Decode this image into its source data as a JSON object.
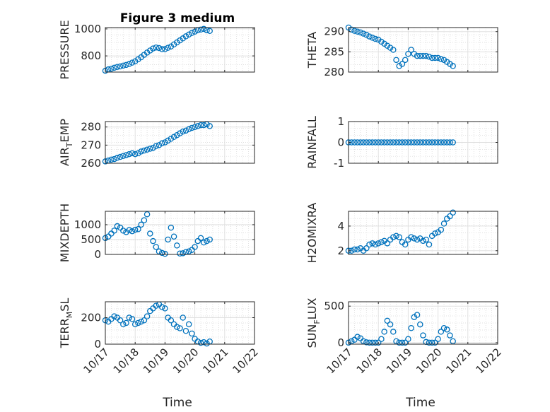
{
  "chart_data": {
    "type": "scatter",
    "title": "Figure 3 medium",
    "xlabel": "Time",
    "marker_color": "#0072BD",
    "x_tick_labels": [
      "10/17",
      "10/18",
      "10/19",
      "10/20",
      "10/21",
      "10/22"
    ],
    "xlim": [
      0,
      5
    ],
    "panels": [
      {
        "id": "pressure",
        "ylabel": "PRESSURE",
        "ylim": [
          680,
          1010
        ],
        "yticks": [
          800,
          1000
        ],
        "ytick_labels": [
          "800",
          "1000"
        ],
        "points": [
          [
            0,
            690
          ],
          [
            0.1,
            700
          ],
          [
            0.2,
            705
          ],
          [
            0.3,
            712
          ],
          [
            0.4,
            718
          ],
          [
            0.5,
            722
          ],
          [
            0.6,
            728
          ],
          [
            0.7,
            733
          ],
          [
            0.8,
            740
          ],
          [
            0.9,
            750
          ],
          [
            1.0,
            760
          ],
          [
            1.1,
            775
          ],
          [
            1.2,
            790
          ],
          [
            1.3,
            808
          ],
          [
            1.4,
            825
          ],
          [
            1.5,
            840
          ],
          [
            1.6,
            855
          ],
          [
            1.7,
            862
          ],
          [
            1.8,
            858
          ],
          [
            1.9,
            850
          ],
          [
            2.0,
            850
          ],
          [
            2.1,
            860
          ],
          [
            2.2,
            870
          ],
          [
            2.3,
            885
          ],
          [
            2.4,
            900
          ],
          [
            2.5,
            915
          ],
          [
            2.6,
            930
          ],
          [
            2.7,
            945
          ],
          [
            2.8,
            958
          ],
          [
            2.9,
            970
          ],
          [
            3.0,
            980
          ],
          [
            3.1,
            990
          ],
          [
            3.2,
            995
          ],
          [
            3.3,
            1000
          ],
          [
            3.4,
            990
          ],
          [
            3.5,
            985
          ]
        ]
      },
      {
        "id": "theta",
        "ylabel": "THETA",
        "ylim": [
          280,
          291
        ],
        "yticks": [
          280,
          285,
          290
        ],
        "ytick_labels": [
          "280",
          "285",
          "290"
        ],
        "points": [
          [
            0,
            291
          ],
          [
            0.1,
            290.5
          ],
          [
            0.2,
            290.2
          ],
          [
            0.3,
            290
          ],
          [
            0.4,
            289.8
          ],
          [
            0.5,
            289.5
          ],
          [
            0.6,
            289.2
          ],
          [
            0.7,
            288.8
          ],
          [
            0.8,
            288.5
          ],
          [
            0.9,
            288.2
          ],
          [
            1.0,
            288
          ],
          [
            1.1,
            287.5
          ],
          [
            1.2,
            287
          ],
          [
            1.3,
            286.5
          ],
          [
            1.4,
            286
          ],
          [
            1.5,
            285.5
          ],
          [
            1.6,
            283
          ],
          [
            1.7,
            281.5
          ],
          [
            1.8,
            282
          ],
          [
            1.9,
            283
          ],
          [
            2.0,
            284.5
          ],
          [
            2.1,
            285.5
          ],
          [
            2.2,
            284.5
          ],
          [
            2.3,
            284
          ],
          [
            2.4,
            284
          ],
          [
            2.5,
            284
          ],
          [
            2.6,
            284
          ],
          [
            2.7,
            283.8
          ],
          [
            2.8,
            283.5
          ],
          [
            2.9,
            283.5
          ],
          [
            3.0,
            283.5
          ],
          [
            3.1,
            283.2
          ],
          [
            3.2,
            283
          ],
          [
            3.3,
            282.5
          ],
          [
            3.4,
            282
          ],
          [
            3.5,
            281.5
          ]
        ]
      },
      {
        "id": "air-temp",
        "ylabel": "AIR_TEMP",
        "ylim": [
          260,
          283
        ],
        "yticks": [
          260,
          270,
          280
        ],
        "ytick_labels": [
          "260",
          "270",
          "280"
        ],
        "points": [
          [
            0,
            261
          ],
          [
            0.1,
            261.5
          ],
          [
            0.2,
            262
          ],
          [
            0.3,
            262.3
          ],
          [
            0.4,
            263
          ],
          [
            0.5,
            263.5
          ],
          [
            0.6,
            264
          ],
          [
            0.7,
            264.5
          ],
          [
            0.8,
            265
          ],
          [
            0.9,
            265.5
          ],
          [
            1.0,
            265
          ],
          [
            1.1,
            265.5
          ],
          [
            1.2,
            266.5
          ],
          [
            1.3,
            267
          ],
          [
            1.4,
            267.5
          ],
          [
            1.5,
            268
          ],
          [
            1.6,
            268.5
          ],
          [
            1.7,
            269.5
          ],
          [
            1.8,
            270
          ],
          [
            1.9,
            271
          ],
          [
            2.0,
            271.5
          ],
          [
            2.1,
            272.5
          ],
          [
            2.2,
            273.5
          ],
          [
            2.3,
            274.5
          ],
          [
            2.4,
            275.5
          ],
          [
            2.5,
            276.5
          ],
          [
            2.6,
            277.5
          ],
          [
            2.7,
            278
          ],
          [
            2.8,
            278.8
          ],
          [
            2.9,
            279.5
          ],
          [
            3.0,
            280
          ],
          [
            3.1,
            280.5
          ],
          [
            3.2,
            281
          ],
          [
            3.3,
            281
          ],
          [
            3.4,
            281.5
          ],
          [
            3.5,
            280.5
          ]
        ]
      },
      {
        "id": "rainfall",
        "ylabel": "RAINFALL",
        "ylim": [
          -1,
          1
        ],
        "yticks": [
          -1,
          0,
          1
        ],
        "ytick_labels": [
          "-1",
          "0",
          "1"
        ],
        "points": [
          [
            0,
            0
          ],
          [
            0.1,
            0
          ],
          [
            0.2,
            0
          ],
          [
            0.3,
            0
          ],
          [
            0.4,
            0
          ],
          [
            0.5,
            0
          ],
          [
            0.6,
            0
          ],
          [
            0.7,
            0
          ],
          [
            0.8,
            0
          ],
          [
            0.9,
            0
          ],
          [
            1.0,
            0
          ],
          [
            1.1,
            0
          ],
          [
            1.2,
            0
          ],
          [
            1.3,
            0
          ],
          [
            1.4,
            0
          ],
          [
            1.5,
            0
          ],
          [
            1.6,
            0
          ],
          [
            1.7,
            0
          ],
          [
            1.8,
            0
          ],
          [
            1.9,
            0
          ],
          [
            2.0,
            0
          ],
          [
            2.1,
            0
          ],
          [
            2.2,
            0
          ],
          [
            2.3,
            0
          ],
          [
            2.4,
            0
          ],
          [
            2.5,
            0
          ],
          [
            2.6,
            0
          ],
          [
            2.7,
            0
          ],
          [
            2.8,
            0
          ],
          [
            2.9,
            0
          ],
          [
            3.0,
            0
          ],
          [
            3.1,
            0
          ],
          [
            3.2,
            0
          ],
          [
            3.3,
            0
          ],
          [
            3.4,
            0
          ],
          [
            3.5,
            0
          ]
        ]
      },
      {
        "id": "mixdepth",
        "ylabel": "MIXDEPTH",
        "ylim": [
          0,
          1450
        ],
        "yticks": [
          0,
          500,
          1000
        ],
        "ytick_labels": [
          "0",
          "500",
          "1000"
        ],
        "points": [
          [
            0,
            550
          ],
          [
            0.1,
            600
          ],
          [
            0.2,
            700
          ],
          [
            0.3,
            800
          ],
          [
            0.4,
            950
          ],
          [
            0.5,
            900
          ],
          [
            0.6,
            800
          ],
          [
            0.7,
            750
          ],
          [
            0.8,
            820
          ],
          [
            0.9,
            780
          ],
          [
            1.0,
            830
          ],
          [
            1.1,
            850
          ],
          [
            1.2,
            1000
          ],
          [
            1.3,
            1150
          ],
          [
            1.4,
            1350
          ],
          [
            1.5,
            700
          ],
          [
            1.6,
            450
          ],
          [
            1.7,
            250
          ],
          [
            1.8,
            100
          ],
          [
            1.9,
            50
          ],
          [
            2.0,
            20
          ],
          [
            2.1,
            500
          ],
          [
            2.2,
            900
          ],
          [
            2.3,
            600
          ],
          [
            2.4,
            300
          ],
          [
            2.5,
            30
          ],
          [
            2.6,
            40
          ],
          [
            2.7,
            80
          ],
          [
            2.8,
            100
          ],
          [
            2.9,
            150
          ],
          [
            3.0,
            250
          ],
          [
            3.1,
            450
          ],
          [
            3.2,
            550
          ],
          [
            3.3,
            400
          ],
          [
            3.4,
            450
          ],
          [
            3.5,
            500
          ]
        ]
      },
      {
        "id": "h2omixra",
        "ylabel": "H2OMIXRA",
        "ylim": [
          1.7,
          5.2
        ],
        "yticks": [
          2,
          4
        ],
        "ytick_labels": [
          "2",
          "4"
        ],
        "points": [
          [
            0,
            2
          ],
          [
            0.1,
            2
          ],
          [
            0.2,
            2.1
          ],
          [
            0.3,
            2.1
          ],
          [
            0.4,
            2.2
          ],
          [
            0.5,
            2
          ],
          [
            0.6,
            2.2
          ],
          [
            0.7,
            2.5
          ],
          [
            0.8,
            2.6
          ],
          [
            0.9,
            2.5
          ],
          [
            1.0,
            2.6
          ],
          [
            1.1,
            2.7
          ],
          [
            1.2,
            2.8
          ],
          [
            1.3,
            2.6
          ],
          [
            1.4,
            2.9
          ],
          [
            1.5,
            3.1
          ],
          [
            1.6,
            3.2
          ],
          [
            1.7,
            3.1
          ],
          [
            1.8,
            2.7
          ],
          [
            1.9,
            2.5
          ],
          [
            2.0,
            2.9
          ],
          [
            2.1,
            3.1
          ],
          [
            2.2,
            3
          ],
          [
            2.3,
            2.9
          ],
          [
            2.4,
            3
          ],
          [
            2.5,
            2.8
          ],
          [
            2.6,
            2.9
          ],
          [
            2.7,
            2.5
          ],
          [
            2.8,
            3.2
          ],
          [
            2.9,
            3.4
          ],
          [
            3.0,
            3.5
          ],
          [
            3.1,
            3.7
          ],
          [
            3.2,
            4.2
          ],
          [
            3.3,
            4.6
          ],
          [
            3.4,
            4.8
          ],
          [
            3.5,
            5.1
          ]
        ]
      },
      {
        "id": "terr-msl",
        "ylabel": "TERR_MSL",
        "ylim": [
          0,
          320
        ],
        "yticks": [
          0,
          200
        ],
        "ytick_labels": [
          "0",
          "200"
        ],
        "points": [
          [
            0,
            180
          ],
          [
            0.1,
            170
          ],
          [
            0.2,
            190
          ],
          [
            0.3,
            210
          ],
          [
            0.4,
            200
          ],
          [
            0.5,
            180
          ],
          [
            0.6,
            150
          ],
          [
            0.7,
            160
          ],
          [
            0.8,
            200
          ],
          [
            0.9,
            190
          ],
          [
            1.0,
            150
          ],
          [
            1.1,
            160
          ],
          [
            1.2,
            170
          ],
          [
            1.3,
            180
          ],
          [
            1.4,
            210
          ],
          [
            1.5,
            250
          ],
          [
            1.6,
            270
          ],
          [
            1.7,
            290
          ],
          [
            1.8,
            300
          ],
          [
            1.9,
            280
          ],
          [
            2.0,
            270
          ],
          [
            2.1,
            200
          ],
          [
            2.2,
            180
          ],
          [
            2.3,
            150
          ],
          [
            2.4,
            130
          ],
          [
            2.5,
            120
          ],
          [
            2.6,
            200
          ],
          [
            2.7,
            100
          ],
          [
            2.8,
            150
          ],
          [
            2.9,
            80
          ],
          [
            3.0,
            40
          ],
          [
            3.1,
            20
          ],
          [
            3.2,
            10
          ],
          [
            3.3,
            15
          ],
          [
            3.4,
            5
          ],
          [
            3.5,
            20
          ]
        ]
      },
      {
        "id": "sun-flux",
        "ylabel": "SUN_FLUX",
        "ylim": [
          -20,
          560
        ],
        "yticks": [
          0,
          500
        ],
        "ytick_labels": [
          "0",
          "500"
        ],
        "points": [
          [
            0,
            0
          ],
          [
            0.1,
            20
          ],
          [
            0.2,
            40
          ],
          [
            0.3,
            80
          ],
          [
            0.4,
            60
          ],
          [
            0.5,
            20
          ],
          [
            0.6,
            5
          ],
          [
            0.7,
            0
          ],
          [
            0.8,
            0
          ],
          [
            0.9,
            0
          ],
          [
            1.0,
            0
          ],
          [
            1.1,
            50
          ],
          [
            1.2,
            150
          ],
          [
            1.3,
            300
          ],
          [
            1.4,
            250
          ],
          [
            1.5,
            150
          ],
          [
            1.6,
            20
          ],
          [
            1.7,
            0
          ],
          [
            1.8,
            0
          ],
          [
            1.9,
            0
          ],
          [
            2.0,
            50
          ],
          [
            2.1,
            200
          ],
          [
            2.2,
            350
          ],
          [
            2.3,
            380
          ],
          [
            2.4,
            250
          ],
          [
            2.5,
            100
          ],
          [
            2.6,
            10
          ],
          [
            2.7,
            0
          ],
          [
            2.8,
            0
          ],
          [
            2.9,
            0
          ],
          [
            3.0,
            50
          ],
          [
            3.1,
            150
          ],
          [
            3.2,
            200
          ],
          [
            3.3,
            180
          ],
          [
            3.4,
            100
          ],
          [
            3.5,
            20
          ]
        ]
      }
    ]
  }
}
